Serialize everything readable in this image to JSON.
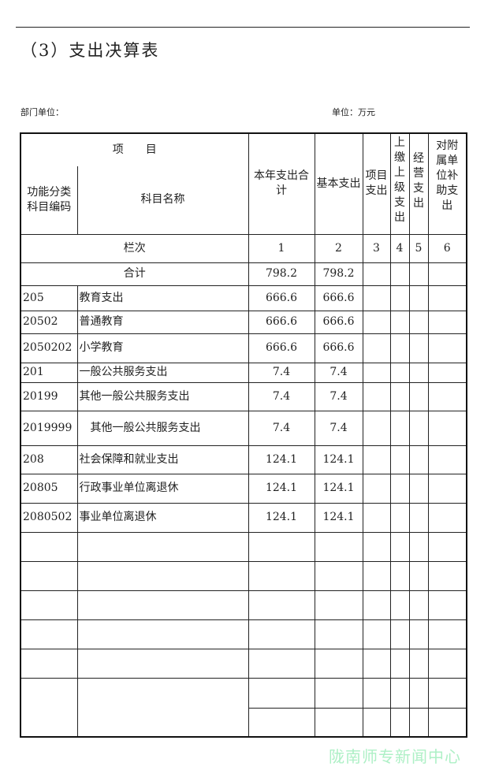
{
  "title": "（3）支出决算表",
  "dept_label": "部门单位：",
  "unit_label": "单位：万元",
  "header": {
    "item": "项　　目",
    "func_code": "功能分类科目编码",
    "subject_name": "科目名称",
    "col1": "本年支出合计",
    "col2": "基本支出",
    "col3": "项目支出",
    "col4": "上缴上级支出",
    "col5": "经营支出",
    "col6": "对附属单位补助支出"
  },
  "column_index": {
    "label": "栏次",
    "nums": [
      "1",
      "2",
      "3",
      "4",
      "5",
      "6"
    ]
  },
  "total": {
    "label": "合计",
    "col1": "798.2",
    "col2": "798.2"
  },
  "rows": [
    {
      "code": "205",
      "name": "教育支出",
      "col1": "666.6",
      "col2": "666.6"
    },
    {
      "code": "20502",
      "name": "普通教育",
      "col1": "666.6",
      "col2": "666.6"
    },
    {
      "code": "2050202",
      "name": "小学教育",
      "col1": "666.6",
      "col2": "666.6"
    },
    {
      "code": "201",
      "name": "一般公共服务支出",
      "col1": "7.4",
      "col2": "7.4"
    },
    {
      "code": "20199",
      "name": "其他一般公共服务支出",
      "col1": "7.4",
      "col2": "7.4"
    },
    {
      "code": "2019999",
      "name": "　其他一般公共服务支出",
      "col1": "7.4",
      "col2": "7.4"
    },
    {
      "code": "208",
      "name": "社会保障和就业支出",
      "col1": "124.1",
      "col2": "124.1"
    },
    {
      "code": "20805",
      "name": "行政事业单位离退休",
      "col1": "124.1",
      "col2": "124.1"
    },
    {
      "code": "2080502",
      "name": "事业单位离退休",
      "col1": "124.1",
      "col2": "124.1"
    }
  ],
  "watermark": "陇南师专新闻中心"
}
